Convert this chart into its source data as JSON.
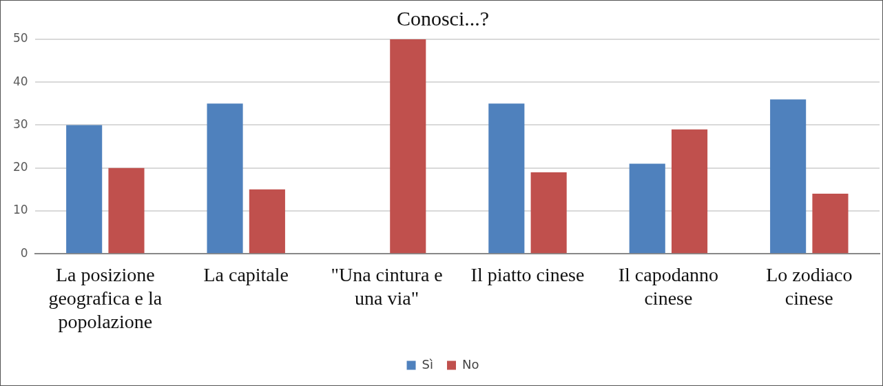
{
  "chart_data": {
    "type": "bar",
    "title": "Conosci...?",
    "categories": [
      "La posizione geografica e la popolazione",
      "La capitale",
      "\"Una cintura e una via\"",
      "Il piatto cinese",
      "Il capodanno cinese",
      "Lo zodiaco cinese"
    ],
    "series": [
      {
        "name": "Sì",
        "color": "#4f81bd",
        "values": [
          30,
          35,
          0,
          35,
          21,
          36
        ]
      },
      {
        "name": "No",
        "color": "#c0504d",
        "values": [
          20,
          15,
          50,
          19,
          29,
          14
        ]
      }
    ],
    "ylim": [
      0,
      50
    ],
    "yticks": [
      0,
      10,
      20,
      30,
      40,
      50
    ],
    "grid": "y",
    "legend": "bottom"
  }
}
